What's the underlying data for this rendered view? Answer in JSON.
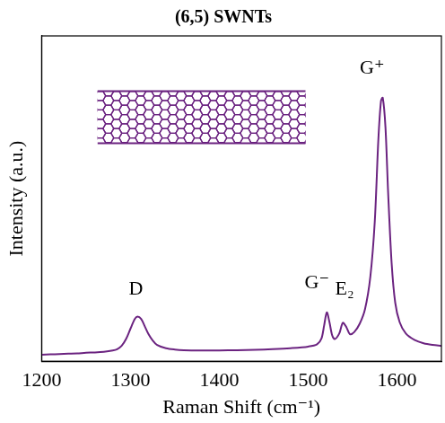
{
  "chart_data": {
    "type": "line",
    "title": "(6,5) SWNTs",
    "x_label": "Raman Shift (cm⁻¹)",
    "y_label": "Intensity (a.u.)",
    "x": [
      1200,
      1210,
      1220,
      1230,
      1240,
      1250,
      1260,
      1270,
      1280,
      1285,
      1290,
      1295,
      1300,
      1305,
      1308,
      1312,
      1316,
      1320,
      1325,
      1330,
      1340,
      1350,
      1360,
      1380,
      1400,
      1420,
      1440,
      1460,
      1480,
      1500,
      1510,
      1515,
      1518,
      1521,
      1524,
      1527,
      1530,
      1535,
      1539,
      1543,
      1547,
      1552,
      1558,
      1564,
      1570,
      1575,
      1579,
      1582,
      1584,
      1587,
      1590,
      1594,
      1598,
      1603,
      1610,
      1620,
      1630,
      1640,
      1650
    ],
    "series": [
      {
        "name": "(6,5) SWNTs",
        "color": "#6b2380",
        "values": [
          0.02,
          0.021,
          0.022,
          0.023,
          0.024,
          0.026,
          0.027,
          0.029,
          0.033,
          0.037,
          0.047,
          0.068,
          0.1,
          0.13,
          0.137,
          0.13,
          0.108,
          0.085,
          0.064,
          0.05,
          0.04,
          0.036,
          0.034,
          0.033,
          0.033,
          0.034,
          0.035,
          0.037,
          0.04,
          0.045,
          0.052,
          0.07,
          0.11,
          0.15,
          0.12,
          0.08,
          0.068,
          0.085,
          0.118,
          0.105,
          0.083,
          0.09,
          0.115,
          0.16,
          0.26,
          0.43,
          0.68,
          0.8,
          0.81,
          0.72,
          0.52,
          0.3,
          0.18,
          0.12,
          0.085,
          0.065,
          0.055,
          0.05,
          0.047
        ]
      }
    ],
    "xlim": [
      1200,
      1650
    ],
    "xticks": [
      1200,
      1300,
      1400,
      1500,
      1600
    ],
    "ylim": [
      0,
      1
    ],
    "yticks": [],
    "tick_labels": "x",
    "grid": false,
    "annotations": [
      {
        "text": "D",
        "x": 1306,
        "y": 0.19
      },
      {
        "text": "G⁻",
        "x": 1510,
        "y": 0.21
      },
      {
        "text": "E₂",
        "x": 1541,
        "y": 0.19
      },
      {
        "text": "G⁺",
        "x": 1572,
        "y": 0.87
      }
    ]
  }
}
